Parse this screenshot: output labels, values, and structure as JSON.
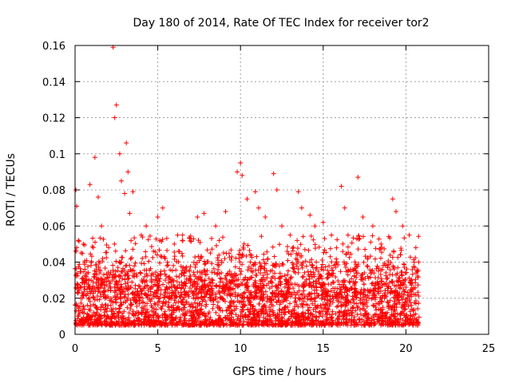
{
  "chart_data": {
    "type": "scatter",
    "title": "Day 180 of 2014, Rate Of TEC Index for receiver tor2",
    "xlabel": "GPS time / hours",
    "ylabel": "ROTI / TECUs",
    "xlim": [
      0,
      25
    ],
    "ylim": [
      0,
      0.16
    ],
    "xticks": [
      0,
      5,
      10,
      15,
      20,
      25
    ],
    "yticks": [
      0,
      0.02,
      0.04,
      0.06,
      0.08,
      0.1,
      0.12,
      0.14,
      0.16
    ],
    "ytick_labels": [
      "0",
      "0.02",
      "0.04",
      "0.06",
      "0.08",
      "0.1",
      "0.12",
      "0.14",
      "0.16"
    ],
    "xtick_labels": [
      "0",
      "5",
      "10",
      "15",
      "20",
      "25"
    ],
    "grid": true,
    "legend": "none",
    "marker": "plus",
    "series": [
      {
        "color": "#ff0000",
        "data_range_x": [
          0,
          20.8
        ],
        "typical_y_range": [
          0.005,
          0.03
        ],
        "points": [
          [
            0.05,
            0.08
          ],
          [
            0.1,
            0.071
          ],
          [
            0.2,
            0.052
          ],
          [
            0.9,
            0.083
          ],
          [
            1.2,
            0.098
          ],
          [
            1.4,
            0.076
          ],
          [
            1.6,
            0.06
          ],
          [
            2.3,
            0.159
          ],
          [
            2.5,
            0.127
          ],
          [
            2.4,
            0.12
          ],
          [
            2.7,
            0.1
          ],
          [
            2.8,
            0.085
          ],
          [
            3.0,
            0.078
          ],
          [
            3.1,
            0.106
          ],
          [
            3.2,
            0.09
          ],
          [
            3.5,
            0.079
          ],
          [
            3.3,
            0.067
          ],
          [
            4.0,
            0.055
          ],
          [
            4.3,
            0.06
          ],
          [
            5.0,
            0.065
          ],
          [
            5.3,
            0.07
          ],
          [
            6.0,
            0.05
          ],
          [
            6.5,
            0.055
          ],
          [
            7.4,
            0.065
          ],
          [
            7.8,
            0.067
          ],
          [
            8.5,
            0.06
          ],
          [
            9.1,
            0.068
          ],
          [
            9.8,
            0.09
          ],
          [
            10.0,
            0.095
          ],
          [
            10.1,
            0.088
          ],
          [
            10.4,
            0.075
          ],
          [
            10.9,
            0.079
          ],
          [
            11.1,
            0.07
          ],
          [
            11.5,
            0.065
          ],
          [
            12.0,
            0.089
          ],
          [
            12.2,
            0.08
          ],
          [
            12.5,
            0.06
          ],
          [
            13.0,
            0.055
          ],
          [
            13.5,
            0.079
          ],
          [
            13.7,
            0.07
          ],
          [
            14.2,
            0.066
          ],
          [
            14.5,
            0.06
          ],
          [
            15.0,
            0.062
          ],
          [
            15.5,
            0.055
          ],
          [
            16.1,
            0.082
          ],
          [
            16.3,
            0.07
          ],
          [
            16.5,
            0.055
          ],
          [
            17.1,
            0.087
          ],
          [
            17.4,
            0.065
          ],
          [
            18.0,
            0.06
          ],
          [
            18.5,
            0.05
          ],
          [
            19.2,
            0.075
          ],
          [
            19.4,
            0.068
          ],
          [
            19.8,
            0.06
          ],
          [
            20.2,
            0.055
          ],
          [
            20.6,
            0.048
          ]
        ]
      }
    ]
  }
}
